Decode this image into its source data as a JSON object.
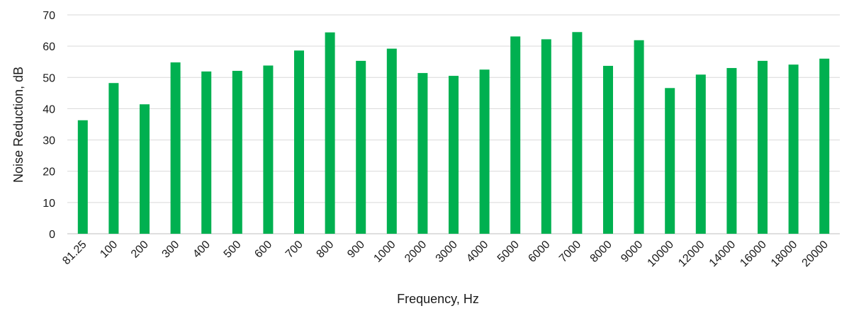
{
  "chart_data": {
    "type": "bar",
    "title": "",
    "xlabel": "Frequency, Hz",
    "ylabel": "Noise Reduction, dB",
    "ylim": [
      0,
      70
    ],
    "yticks": [
      "0",
      "10",
      "20",
      "30",
      "40",
      "50",
      "60",
      "70"
    ],
    "grid": true,
    "legend": "none",
    "bar_color": "#00b050",
    "grid_color": "#d9d9d9",
    "categories": [
      "81.25",
      "100",
      "200",
      "300",
      "400",
      "500",
      "600",
      "700",
      "800",
      "900",
      "1000",
      "2000",
      "3000",
      "4000",
      "5000",
      "6000",
      "7000",
      "8000",
      "9000",
      "10000",
      "12000",
      "14000",
      "16000",
      "18000",
      "20000"
    ],
    "values": [
      36.3,
      48.2,
      41.4,
      54.8,
      51.9,
      52.1,
      53.8,
      58.6,
      64.4,
      55.3,
      59.2,
      51.4,
      50.5,
      52.5,
      63.1,
      62.2,
      64.5,
      53.7,
      61.9,
      46.6,
      50.9,
      53.0,
      55.3,
      54.1,
      56.0
    ]
  }
}
